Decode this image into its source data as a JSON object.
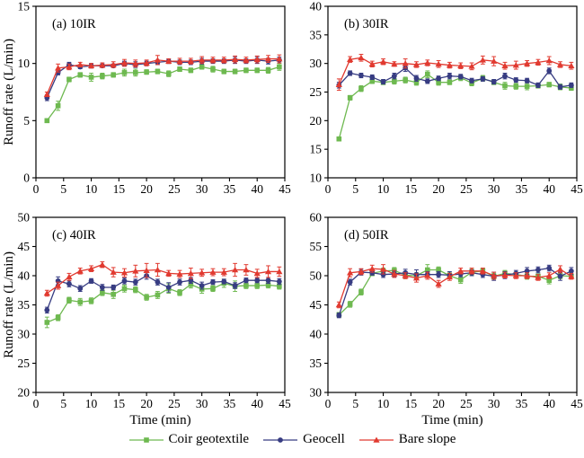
{
  "figure": {
    "ylabel": "Runoff rate (L/min)",
    "xlabel": "Time (min)"
  },
  "legend": [
    {
      "label": "Coir geotextile",
      "color": "#6eb950",
      "marker": "square"
    },
    {
      "label": "Geocell",
      "color": "#373c82",
      "marker": "circle"
    },
    {
      "label": "Bare slope",
      "color": "#e13a30",
      "marker": "triangle"
    }
  ],
  "chart_data": {
    "type": "line",
    "xlabel": "Time (min)",
    "ylabel": "Runoff rate (L/min)",
    "xlim": [
      0,
      45
    ],
    "xtick_step": 5,
    "x": [
      2,
      4,
      6,
      8,
      10,
      12,
      14,
      16,
      18,
      20,
      22,
      24,
      26,
      28,
      30,
      32,
      34,
      36,
      38,
      40,
      42,
      44
    ],
    "panels": [
      {
        "label": "(a) 10IR",
        "ylim": [
          0,
          15
        ],
        "ytick_step": 5,
        "series": [
          {
            "name": "Coir geotextile",
            "values": [
              5.0,
              6.3,
              8.6,
              9.0,
              8.8,
              8.9,
              9.0,
              9.2,
              9.2,
              9.25,
              9.3,
              9.1,
              9.5,
              9.4,
              9.7,
              9.5,
              9.3,
              9.3,
              9.4,
              9.4,
              9.4,
              9.7
            ],
            "errors": [
              0.15,
              0.4,
              0.2,
              0.2,
              0.35,
              0.25,
              0.2,
              0.3,
              0.3,
              0.2,
              0.2,
              0.25,
              0.2,
              0.2,
              0.2,
              0.25,
              0.2,
              0.2,
              0.2,
              0.2,
              0.25,
              0.3
            ]
          },
          {
            "name": "Geocell",
            "values": [
              7.0,
              9.2,
              9.9,
              9.7,
              9.8,
              9.8,
              9.8,
              10.0,
              9.9,
              10.0,
              10.1,
              10.2,
              10.1,
              10.1,
              10.2,
              10.2,
              10.2,
              10.3,
              10.2,
              10.3,
              10.2,
              10.3
            ],
            "errors": [
              0.25,
              0.2,
              0.2,
              0.15,
              0.2,
              0.15,
              0.15,
              0.2,
              0.25,
              0.2,
              0.2,
              0.2,
              0.2,
              0.2,
              0.25,
              0.2,
              0.2,
              0.3,
              0.2,
              0.3,
              0.25,
              0.25
            ]
          },
          {
            "name": "Bare slope",
            "values": [
              7.3,
              9.6,
              9.7,
              9.9,
              9.8,
              9.85,
              9.9,
              10.05,
              10.0,
              10.05,
              10.3,
              10.2,
              10.2,
              10.2,
              10.3,
              10.3,
              10.3,
              10.35,
              10.3,
              10.35,
              10.4,
              10.4
            ],
            "errors": [
              0.2,
              0.35,
              0.25,
              0.2,
              0.2,
              0.2,
              0.25,
              0.3,
              0.3,
              0.25,
              0.4,
              0.2,
              0.25,
              0.25,
              0.3,
              0.25,
              0.25,
              0.3,
              0.25,
              0.3,
              0.3,
              0.35
            ]
          }
        ]
      },
      {
        "label": "(b) 30IR",
        "ylim": [
          10,
          40
        ],
        "ytick_step": 5,
        "series": [
          {
            "name": "Coir geotextile",
            "values": [
              16.8,
              24.0,
              25.6,
              26.9,
              26.7,
              26.9,
              27.1,
              26.7,
              28.1,
              26.7,
              26.7,
              27.5,
              26.6,
              27.4,
              26.7,
              26.1,
              26.0,
              26.0,
              26.1,
              26.3,
              25.9,
              25.7
            ],
            "errors": [
              0.3,
              0.4,
              0.5,
              0.4,
              0.4,
              0.5,
              0.5,
              0.5,
              0.6,
              0.5,
              0.4,
              0.5,
              0.5,
              0.5,
              0.4,
              0.6,
              0.5,
              0.6,
              0.4,
              0.4,
              0.5,
              0.4
            ]
          },
          {
            "name": "Geocell",
            "values": [
              26.2,
              28.3,
              27.9,
              27.6,
              26.8,
              27.8,
              29.2,
              27.4,
              26.9,
              27.4,
              27.8,
              27.7,
              27.0,
              27.3,
              26.8,
              27.8,
              27.1,
              27.0,
              26.2,
              28.7,
              25.9,
              26.2
            ],
            "errors": [
              0.5,
              0.4,
              0.4,
              0.4,
              0.4,
              0.5,
              0.6,
              0.5,
              0.4,
              0.4,
              0.5,
              0.4,
              0.4,
              0.4,
              0.4,
              0.5,
              0.4,
              0.4,
              0.4,
              0.5,
              0.4,
              0.4
            ]
          },
          {
            "name": "Bare slope",
            "values": [
              26.3,
              30.7,
              31.0,
              29.9,
              30.3,
              29.9,
              30.0,
              29.8,
              30.1,
              29.9,
              29.7,
              29.6,
              29.5,
              30.6,
              30.4,
              29.6,
              29.7,
              30.0,
              30.2,
              30.5,
              29.8,
              29.6
            ],
            "errors": [
              1.0,
              0.5,
              0.6,
              0.5,
              0.5,
              0.4,
              0.8,
              0.5,
              0.5,
              0.6,
              0.5,
              0.5,
              0.6,
              0.7,
              0.8,
              0.6,
              0.7,
              0.5,
              0.5,
              0.7,
              0.5,
              0.6
            ]
          }
        ]
      },
      {
        "label": "(c) 40IR",
        "ylim": [
          20,
          50
        ],
        "ytick_step": 5,
        "series": [
          {
            "name": "Coir geotextile",
            "values": [
              32.0,
              32.8,
              35.8,
              35.5,
              35.7,
              37.1,
              36.8,
              37.8,
              37.6,
              36.3,
              36.7,
              37.8,
              37.1,
              38.5,
              37.7,
              37.8,
              38.7,
              38.2,
              38.3,
              38.3,
              38.4,
              38.2
            ],
            "errors": [
              0.9,
              0.5,
              0.5,
              0.6,
              0.5,
              0.5,
              0.7,
              0.6,
              0.5,
              0.5,
              0.6,
              0.8,
              0.5,
              0.6,
              0.7,
              0.5,
              0.7,
              0.9,
              0.5,
              0.5,
              0.5,
              0.5
            ]
          },
          {
            "name": "Geocell",
            "values": [
              34.1,
              39.1,
              38.6,
              37.8,
              39.1,
              38.0,
              38.0,
              39.1,
              38.9,
              40.0,
              38.9,
              38.0,
              38.9,
              39.2,
              38.3,
              38.9,
              39.0,
              38.3,
              39.2,
              39.2,
              39.2,
              39.0
            ],
            "errors": [
              0.5,
              0.7,
              0.5,
              0.5,
              0.4,
              0.5,
              0.4,
              0.5,
              0.5,
              0.6,
              0.5,
              0.8,
              0.5,
              0.5,
              0.6,
              0.4,
              0.4,
              0.5,
              0.4,
              0.4,
              0.5,
              0.5
            ]
          },
          {
            "name": "Bare slope",
            "values": [
              37.0,
              38.3,
              39.8,
              40.8,
              41.2,
              41.9,
              40.6,
              40.5,
              40.8,
              40.9,
              41.0,
              40.4,
              40.3,
              40.4,
              40.5,
              40.6,
              40.6,
              41.0,
              41.0,
              40.4,
              40.7,
              40.7
            ],
            "errors": [
              0.5,
              0.6,
              0.6,
              0.5,
              0.5,
              0.5,
              0.8,
              0.7,
              1.0,
              1.2,
              1.1,
              0.5,
              0.6,
              0.9,
              0.6,
              0.6,
              0.6,
              1.1,
              0.9,
              0.7,
              1.0,
              0.8
            ]
          }
        ]
      },
      {
        "label": "(d) 50IR",
        "ylim": [
          30,
          60
        ],
        "ytick_step": 5,
        "series": [
          {
            "name": "Coir geotextile",
            "values": [
              43.3,
              45.1,
              47.2,
              50.4,
              50.8,
              50.9,
              50.1,
              50.0,
              51.0,
              51.0,
              50.0,
              49.3,
              50.6,
              50.8,
              49.9,
              50.4,
              50.2,
              49.9,
              49.9,
              49.2,
              50.0,
              49.9
            ],
            "errors": [
              0.4,
              0.5,
              0.5,
              0.4,
              0.5,
              0.5,
              0.6,
              0.5,
              0.9,
              0.5,
              0.5,
              0.6,
              0.5,
              0.5,
              0.5,
              0.5,
              0.4,
              0.5,
              0.4,
              0.6,
              0.5,
              0.4
            ]
          },
          {
            "name": "Geocell",
            "values": [
              43.2,
              48.9,
              50.6,
              50.5,
              50.2,
              50.3,
              50.5,
              50.2,
              50.2,
              50.2,
              50.1,
              50.3,
              50.5,
              50.2,
              49.9,
              50.1,
              50.4,
              50.8,
              51.0,
              51.3,
              49.9,
              50.8
            ],
            "errors": [
              0.4,
              0.5,
              0.5,
              0.4,
              0.5,
              0.5,
              0.6,
              0.8,
              0.5,
              0.5,
              0.6,
              0.5,
              0.5,
              0.5,
              0.7,
              0.6,
              0.5,
              0.6,
              0.5,
              0.5,
              0.7,
              0.6
            ]
          },
          {
            "name": "Bare slope",
            "values": [
              45.0,
              50.5,
              50.7,
              51.2,
              51.1,
              50.3,
              50.0,
              49.6,
              50.0,
              48.6,
              49.8,
              50.8,
              50.8,
              50.8,
              50.0,
              50.1,
              50.0,
              50.0,
              49.7,
              50.0,
              51.1,
              49.9
            ],
            "errors": [
              0.5,
              0.7,
              0.5,
              0.6,
              0.8,
              0.6,
              0.5,
              0.7,
              0.6,
              0.6,
              0.6,
              0.5,
              0.5,
              0.5,
              0.6,
              0.5,
              0.5,
              0.5,
              0.5,
              0.5,
              0.6,
              0.5
            ]
          }
        ]
      }
    ]
  }
}
